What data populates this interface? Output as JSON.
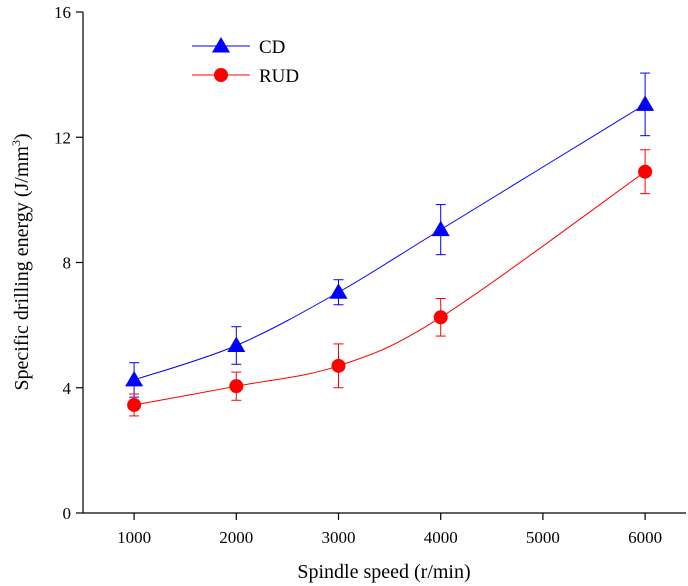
{
  "chart_data": {
    "type": "line",
    "xlabel": "Spindle speed (r/min)",
    "ylabel_main": "Specific drilling energy (J/mm",
    "ylabel_sup": "3",
    "ylabel_end": ")",
    "xlim": [
      500,
      6400
    ],
    "ylim": [
      0,
      16
    ],
    "xticks": [
      1000,
      2000,
      3000,
      4000,
      5000,
      6000
    ],
    "yticks": [
      0,
      4,
      8,
      12,
      16
    ],
    "grid": false,
    "legend_position": "top-left",
    "series": [
      {
        "name": "CD",
        "marker": "triangle",
        "color": "#0000ff",
        "x": [
          1000,
          2000,
          3000,
          4000,
          6000
        ],
        "y": [
          4.25,
          5.35,
          7.05,
          9.05,
          13.05
        ],
        "err": [
          0.55,
          0.6,
          0.4,
          0.8,
          1.0
        ]
      },
      {
        "name": "RUD",
        "marker": "circle",
        "color": "#ff0000",
        "x": [
          1000,
          2000,
          3000,
          4000,
          6000
        ],
        "y": [
          3.45,
          4.05,
          4.7,
          6.25,
          10.9
        ],
        "err": [
          0.35,
          0.45,
          0.7,
          0.6,
          0.7
        ]
      }
    ]
  }
}
